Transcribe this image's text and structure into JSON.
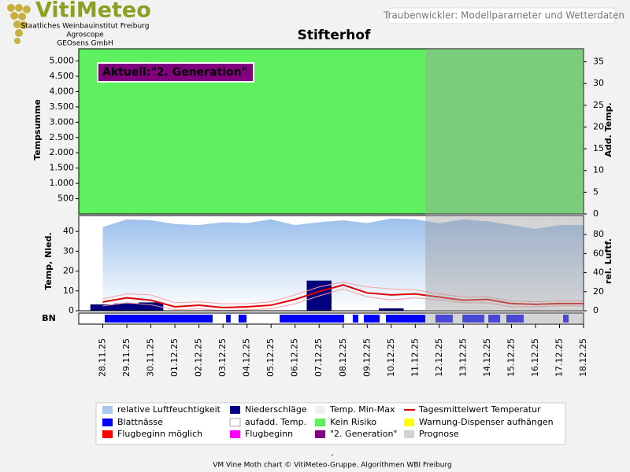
{
  "header": {
    "logo": "VitiMeteo",
    "lines": [
      "Staatliches Weinbauinstitut Freiburg",
      "Agroscope",
      "GEOsens GmbH"
    ],
    "subtitle": "Traubenwickler: Modellparameter und Wetterdaten"
  },
  "chart_data": [
    {
      "type": "area",
      "title": "Stifterhof",
      "annotation": "Aktuell:\"2. Generation\"",
      "background": "#5ef05e",
      "ylabel": "Tempsumme",
      "y2label": "Add. Temp.",
      "ylim": [
        0,
        5400
      ],
      "yticks": [
        500,
        {
          "value": 1000,
          "label": "1.000"
        },
        {
          "value": 1500,
          "label": "1.500"
        },
        {
          "value": 2000,
          "label": "2.000"
        },
        {
          "value": 2500,
          "label": "2.500"
        },
        {
          "value": 3000,
          "label": "3.000"
        },
        {
          "value": 3500,
          "label": "3.500"
        },
        {
          "value": 4000,
          "label": "4.000"
        },
        {
          "value": 4500,
          "label": "4.500"
        },
        {
          "value": 5000,
          "label": "5.000"
        }
      ],
      "y2lim": [
        0,
        38
      ],
      "y2ticks": [
        0,
        5,
        10,
        15,
        20,
        25,
        30,
        35
      ]
    },
    {
      "type": "line",
      "ylabel": "Temp, Nied.",
      "y2label": "rel. Luftf.",
      "categories": [
        "28.11.25",
        "29.11.25",
        "30.11.25",
        "01.12.25",
        "02.12.25",
        "03.12.25",
        "04.12.25",
        "05.12.25",
        "06.12.25",
        "07.12.25",
        "08.12.25",
        "09.12.25",
        "10.12.25",
        "11.12.25",
        "12.12.25",
        "13.12.25",
        "14.12.25",
        "15.12.25",
        "16.12.25",
        "17.12.25",
        "18.12.25"
      ],
      "ylim": [
        0,
        48
      ],
      "yticks": [
        0,
        10,
        20,
        30,
        40
      ],
      "y2lim": [
        0,
        100
      ],
      "y2ticks": [
        0,
        20,
        40,
        60,
        80
      ],
      "series": [
        {
          "style": "area",
          "axis": "y2",
          "color": "#9cc0ec",
          "values": [
            88,
            96,
            95,
            91,
            90,
            93,
            92,
            96,
            90,
            93,
            95,
            92,
            97,
            96,
            92,
            96,
            94,
            90,
            86,
            90,
            90
          ]
        },
        {
          "style": "bar",
          "color": "#000080",
          "values": [
            3,
            3.5,
            4,
            0,
            0,
            0,
            0,
            0,
            0,
            15,
            0,
            0,
            1,
            0,
            0,
            0,
            0,
            0,
            0,
            0,
            0
          ]
        },
        {
          "style": "thin",
          "color": "#f4a0a0",
          "values": [
            6,
            8.5,
            8,
            4,
            4.5,
            3.5,
            3.5,
            4.5,
            8,
            12,
            14.5,
            12,
            11,
            10.5,
            8.5,
            7,
            7,
            5,
            4.5,
            5,
            5
          ]
        },
        {
          "style": "thin",
          "color": "#f4a0a0",
          "values": [
            2.5,
            4,
            3,
            0.5,
            1,
            0,
            0.5,
            1,
            3.5,
            7.5,
            11,
            7,
            5.5,
            6.5,
            5.5,
            4,
            4,
            2,
            2,
            2.5,
            2.5
          ]
        },
        {
          "style": "line",
          "color": "#e00000",
          "values": [
            4.4,
            6.5,
            5.3,
            2,
            2.8,
            1.6,
            2,
            2.8,
            5.7,
            9.7,
            13,
            9,
            8,
            8.5,
            6.9,
            5.3,
            5.7,
            3.6,
            3.2,
            3.6,
            3.6
          ]
        }
      ],
      "leaf_wetness": {
        "label": "BN",
        "color": "#0000ff",
        "intervals": [
          [
            0.08,
            4.57
          ],
          [
            5.13,
            5.32
          ],
          [
            5.65,
            5.98
          ],
          [
            7.36,
            10.04
          ],
          [
            10.4,
            10.63
          ],
          [
            10.86,
            11.52
          ],
          [
            11.78,
            13.42
          ],
          [
            13.84,
            14.56
          ],
          [
            14.96,
            15.87
          ],
          [
            16.04,
            16.53
          ],
          [
            16.79,
            17.51
          ],
          [
            19.15,
            19.38
          ]
        ]
      },
      "forecast_start": 13.42,
      "forecast_color": "#a0a0a0"
    }
  ],
  "legend": [
    {
      "label": "relative Luftfeuchtigkeit",
      "color": "#a8c8ee",
      "marker": "box"
    },
    {
      "label": "Niederschläge",
      "color": "#000080",
      "marker": "box"
    },
    {
      "label": "Temp. Min-Max",
      "color": "#f0f0f0",
      "marker": "box"
    },
    {
      "label": "Tagesmittelwert Temperatur",
      "color": "#e00000",
      "marker": "line"
    },
    {
      "label": "Blattnässe",
      "color": "#0000ff",
      "marker": "box"
    },
    {
      "label": "aufadd. Temp.",
      "color": "#ffffff",
      "marker": "box"
    },
    {
      "label": "Kein Risiko",
      "color": "#5ef05e",
      "marker": "box"
    },
    {
      "label": "Warnung-Dispenser aufhängen",
      "color": "#ffff00",
      "marker": "box"
    },
    {
      "label": "Flugbeginn möglich",
      "color": "#ff0000",
      "marker": "box"
    },
    {
      "label": "Flugbeginn",
      "color": "#ff00ff",
      "marker": "box"
    },
    {
      "label": "\"2. Generation\"",
      "color": "#800080",
      "marker": "box"
    },
    {
      "label": "Prognose",
      "color": "#d3d3d3",
      "marker": "box"
    }
  ],
  "footer": {
    "dash": "-",
    "text": "VM Vine Moth chart © VitiMeteo-Gruppe. Algorithmen WBI Freiburg"
  }
}
